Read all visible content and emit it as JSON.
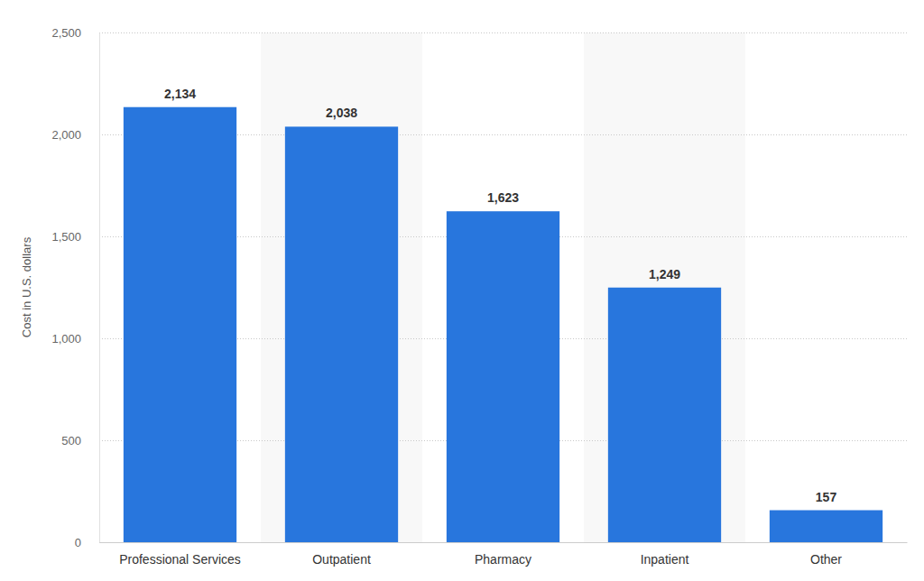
{
  "chart_data": {
    "type": "bar",
    "y_label": "Cost in U.S. dollars",
    "categories": [
      "Professional Services",
      "Outpatient",
      "Pharmacy",
      "Inpatient",
      "Other"
    ],
    "values": [
      2134,
      2038,
      1623,
      1249,
      157
    ],
    "value_labels": [
      "2,134",
      "2,038",
      "1,623",
      "1,249",
      "157"
    ],
    "color": "#2876dd",
    "ylim": [
      0,
      2500
    ],
    "yticks": [
      0,
      500,
      {
        "value": 1000,
        "label": "1,000"
      },
      {
        "value": 1500,
        "label": "1,500"
      },
      {
        "value": 2000,
        "label": "2,000"
      },
      {
        "value": 2500,
        "label": "2,500"
      }
    ],
    "grid": true,
    "data_labels": true
  }
}
